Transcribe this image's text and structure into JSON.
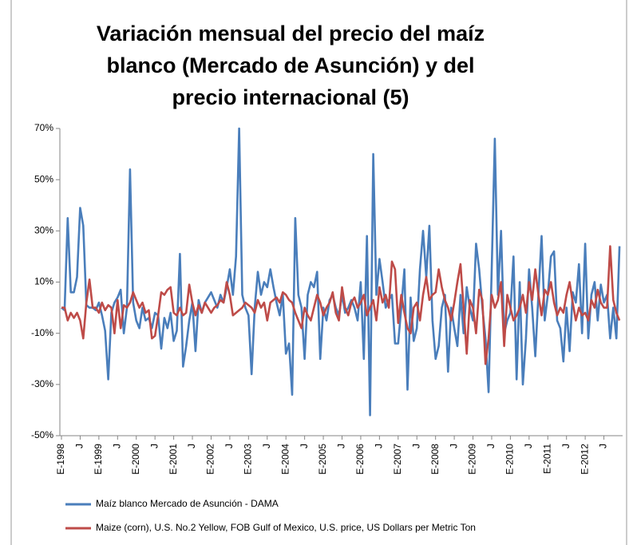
{
  "chart_data": {
    "type": "line",
    "title": "Variación mensual del precio del maíz blanco (Mercado de Asunción) y del precio internacional (5)",
    "categories": [
      "E-1998",
      null,
      null,
      null,
      null,
      null,
      "J",
      null,
      null,
      null,
      null,
      null,
      "E-1999",
      null,
      null,
      null,
      null,
      null,
      "J",
      null,
      null,
      null,
      null,
      null,
      "E-2000",
      null,
      null,
      null,
      null,
      null,
      "J",
      null,
      null,
      null,
      null,
      null,
      "E-2001",
      null,
      null,
      null,
      null,
      null,
      "J",
      null,
      null,
      null,
      null,
      null,
      "E-2002",
      null,
      null,
      null,
      null,
      null,
      "J",
      null,
      null,
      null,
      null,
      null,
      "E-2003",
      null,
      null,
      null,
      null,
      null,
      "J",
      null,
      null,
      null,
      null,
      null,
      "E-2004",
      null,
      null,
      null,
      null,
      null,
      "J",
      null,
      null,
      null,
      null,
      null,
      "E-2005",
      null,
      null,
      null,
      null,
      null,
      "J",
      null,
      null,
      null,
      null,
      null,
      "E-2006",
      null,
      null,
      null,
      null,
      null,
      "J",
      null,
      null,
      null,
      null,
      null,
      "E-2007",
      null,
      null,
      null,
      null,
      null,
      "J",
      null,
      null,
      null,
      null,
      null,
      "E-2008",
      null,
      null,
      null,
      null,
      null,
      "J",
      null,
      null,
      null,
      null,
      null,
      "E-2009",
      null,
      null,
      null,
      null,
      null,
      "J",
      null,
      null,
      null,
      null,
      null,
      "E-2010",
      null,
      null,
      null,
      null,
      null,
      "J",
      null,
      null,
      null,
      null,
      null,
      "E-2011",
      null,
      null,
      null,
      null,
      null,
      "J",
      null,
      null,
      null,
      null,
      null,
      "E-2012",
      null,
      null,
      null,
      null,
      null,
      "J",
      null,
      null,
      null,
      null,
      null
    ],
    "series": [
      {
        "name": "Maíz blanco Mercado de Asunción - DAMA",
        "color": "#4a7ebb",
        "values": [
          0,
          -1,
          35,
          6,
          6,
          12,
          39,
          32,
          1,
          0,
          0,
          -1,
          2,
          -3,
          -9,
          -28,
          -2,
          2,
          4,
          7,
          -10,
          0,
          54,
          2,
          -5,
          -8,
          0,
          -5,
          -4,
          -8,
          -2,
          -3,
          -16,
          -4,
          -8,
          -2,
          -13,
          -9,
          21,
          -23,
          -15,
          -5,
          2,
          -17,
          3,
          -2,
          2,
          4,
          6,
          3,
          0,
          5,
          2,
          8,
          15,
          5,
          20,
          70,
          5,
          0,
          -3,
          -26,
          0,
          14,
          5,
          10,
          8,
          15,
          8,
          2,
          -3,
          5,
          -18,
          -14,
          -34,
          35,
          5,
          0,
          -20,
          5,
          10,
          8,
          14,
          -20,
          0,
          -5,
          3,
          5,
          0,
          -3,
          5,
          -2,
          0,
          3,
          0,
          -5,
          10,
          -20,
          28,
          -42,
          60,
          5,
          19,
          10,
          0,
          3,
          5,
          -14,
          -14,
          0,
          15,
          -32,
          4,
          -13,
          -8,
          15,
          30,
          12,
          32,
          -5,
          -20,
          -15,
          0,
          5,
          -25,
          0,
          -8,
          -15,
          5,
          -10,
          8,
          0,
          -5,
          25,
          15,
          0,
          -12,
          -33,
          15,
          66,
          5,
          30,
          -10,
          -5,
          -2,
          20,
          -28,
          10,
          -30,
          -12,
          15,
          0,
          -19,
          5,
          28,
          -5,
          5,
          20,
          22,
          -5,
          -8,
          -21,
          0,
          -17,
          6,
          2,
          17,
          -10,
          25,
          -12,
          5,
          10,
          -5,
          9,
          2,
          5,
          -12,
          0,
          -12,
          24
        ]
      },
      {
        "name": "Maize (corn), U.S. No.2 Yellow, FOB Gulf of Mexico, U.S. price, US Dollars per Metric Ton",
        "color": "#be4b48",
        "values": [
          0,
          0,
          -5,
          -2,
          -4,
          -2,
          -5,
          -12,
          2,
          11,
          0,
          0,
          -2,
          2,
          -1,
          1,
          0,
          -10,
          3,
          -8,
          1,
          0,
          2,
          6,
          3,
          0,
          2,
          -2,
          -1,
          -12,
          -11,
          -3,
          6,
          5,
          7,
          8,
          -2,
          -3,
          0,
          -3,
          -2,
          9,
          2,
          -3,
          1,
          -2,
          2,
          0,
          -2,
          0,
          1,
          3,
          2,
          10,
          5,
          -3,
          -2,
          -1,
          0,
          2,
          1,
          0,
          -2,
          3,
          0,
          2,
          -5,
          2,
          3,
          4,
          2,
          6,
          5,
          3,
          2,
          -2,
          -5,
          -8,
          0,
          -3,
          -5,
          0,
          5,
          2,
          -3,
          0,
          2,
          6,
          -2,
          -5,
          8,
          0,
          -3,
          2,
          4,
          0,
          2,
          5,
          -3,
          0,
          3,
          -5,
          8,
          2,
          5,
          0,
          18,
          15,
          -6,
          5,
          -2,
          -8,
          -10,
          0,
          2,
          -5,
          5,
          12,
          3,
          5,
          6,
          15,
          8,
          3,
          0,
          -5,
          2,
          10,
          17,
          0,
          -18,
          3,
          0,
          -10,
          7,
          3,
          -22,
          -12,
          5,
          0,
          3,
          10,
          -15,
          5,
          0,
          -5,
          -3,
          0,
          5,
          -2,
          10,
          3,
          15,
          5,
          -3,
          7,
          5,
          10,
          2,
          -3,
          0,
          -2,
          5,
          10,
          2,
          -5,
          0,
          -3,
          -2,
          -5,
          3,
          0,
          7,
          2,
          0,
          0,
          24,
          3,
          -2,
          -5
        ]
      }
    ],
    "ylim": [
      -50,
      70
    ],
    "yticks": [
      {
        "value": -50,
        "label": "-50%"
      },
      {
        "value": -30,
        "label": "-30%"
      },
      {
        "value": -10,
        "label": "-10%"
      },
      {
        "value": 10,
        "label": "10%"
      },
      {
        "value": 30,
        "label": "30%"
      },
      {
        "value": 50,
        "label": "50%"
      },
      {
        "value": 70,
        "label": "70%"
      }
    ]
  }
}
